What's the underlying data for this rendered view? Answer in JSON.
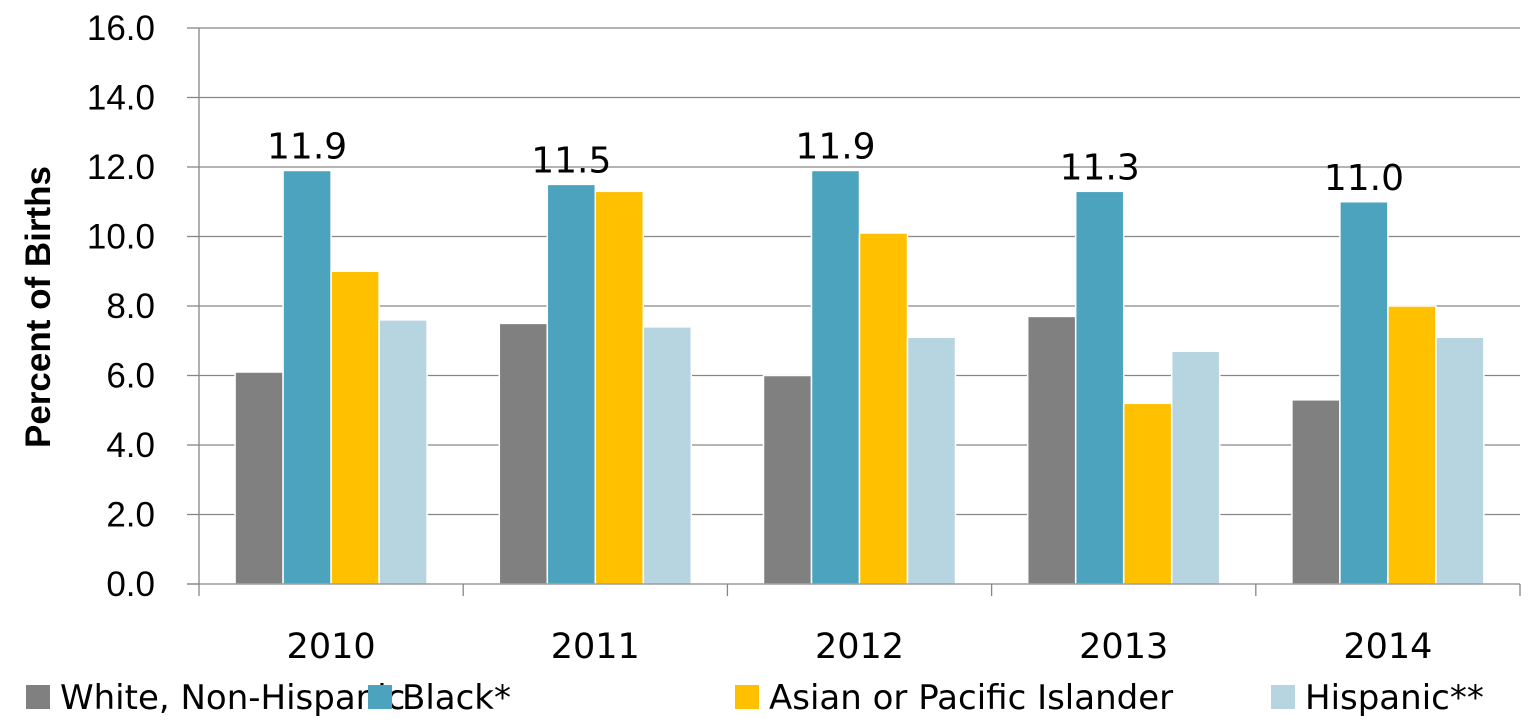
{
  "chart_data": {
    "type": "bar",
    "title": "",
    "xlabel": "",
    "ylabel": "Percent of Births",
    "ylim": [
      0,
      16
    ],
    "ytick_step": 2,
    "y_tick_labels": [
      "0.0",
      "2.0",
      "4.0",
      "6.0",
      "8.0",
      "10.0",
      "12.0",
      "14.0",
      "16.0"
    ],
    "grid": true,
    "legend_position": "bottom",
    "categories": [
      "2010",
      "2011",
      "2012",
      "2013",
      "2014"
    ],
    "series": [
      {
        "name": "White, Non-Hispanic",
        "color": "#808080",
        "values": [
          6.1,
          7.5,
          6.0,
          7.7,
          5.3
        ]
      },
      {
        "name": "Black*",
        "color": "#4BA3BE",
        "values": [
          11.9,
          11.5,
          11.9,
          11.3,
          11.0
        ]
      },
      {
        "name": "Asian or Pacific Islander",
        "color": "#FFC000",
        "values": [
          9.0,
          11.3,
          10.1,
          5.2,
          8.0
        ]
      },
      {
        "name": "Hispanic**",
        "color": "#B7D5E0",
        "values": [
          7.6,
          7.4,
          7.1,
          6.7,
          7.1
        ]
      }
    ],
    "data_labels": [
      {
        "series": "Black*",
        "category": "2010",
        "text": "11.9"
      },
      {
        "series": "Black*",
        "category": "2011",
        "text": "11.5"
      },
      {
        "series": "Black*",
        "category": "2012",
        "text": "11.9"
      },
      {
        "series": "Black*",
        "category": "2013",
        "text": "11.3"
      },
      {
        "series": "Black*",
        "category": "2014",
        "text": "11.0"
      }
    ]
  }
}
